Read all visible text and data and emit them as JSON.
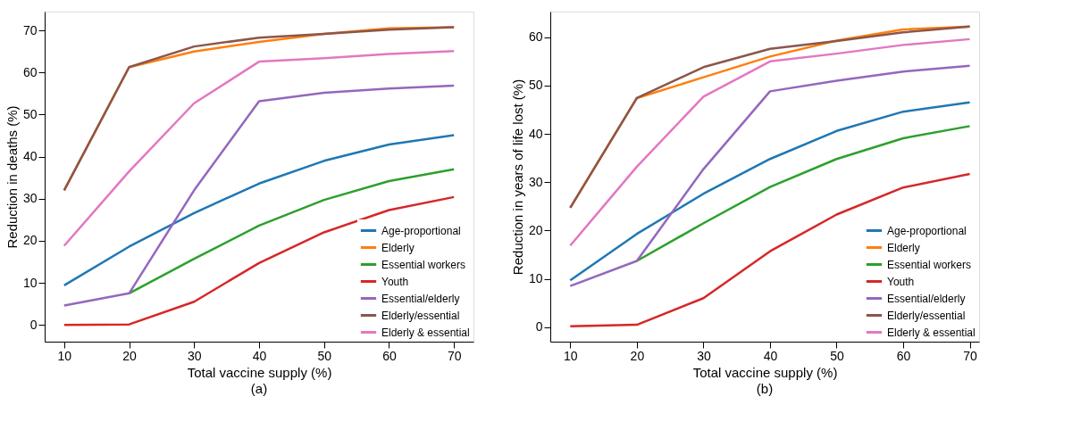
{
  "chart_data": [
    {
      "type": "line",
      "title": "(a)",
      "xlabel": "Total vaccine supply (%)",
      "ylabel": "Reduction in deaths (%)",
      "x": [
        10,
        20,
        30,
        40,
        50,
        60,
        70
      ],
      "xlim": [
        7,
        73
      ],
      "ylim": [
        -4,
        74.5
      ],
      "xticks": [
        10,
        20,
        30,
        40,
        50,
        60,
        70
      ],
      "yticks": [
        0,
        10,
        20,
        30,
        40,
        50,
        60,
        70
      ],
      "grid": false,
      "legend": "bottom right",
      "marker": "none",
      "line_style": "solid",
      "series": [
        {
          "name": "Age-proportional",
          "color": "#1f77b4",
          "values": [
            9.4,
            18.6,
            26.6,
            33.6,
            39,
            42.9,
            45.1
          ]
        },
        {
          "name": "Elderly",
          "color": "#ff7f0e",
          "values": [
            32,
            61.3,
            65,
            67.3,
            69.2,
            70.5,
            70.8
          ]
        },
        {
          "name": "Essential workers",
          "color": "#2ca02c",
          "values": [
            null,
            7.5,
            15.7,
            23.6,
            29.7,
            34.2,
            37
          ]
        },
        {
          "name": "Youth",
          "color": "#d62728",
          "values": [
            0,
            0.1,
            5.5,
            14.7,
            22,
            27.3,
            30.4
          ]
        },
        {
          "name": "Essential/elderly",
          "color": "#9467bd",
          "values": [
            4.6,
            7.5,
            32,
            53.2,
            55.2,
            56.2,
            56.9
          ]
        },
        {
          "name": "Elderly/essential",
          "color": "#8c564b",
          "values": [
            32,
            61.3,
            66.2,
            68.3,
            69.2,
            70.2,
            70.8
          ]
        },
        {
          "name": "Elderly & essential",
          "color": "#e377c2",
          "values": [
            18.8,
            36.5,
            52.7,
            62.6,
            63.4,
            64.4,
            65.1
          ]
        }
      ]
    },
    {
      "type": "line",
      "title": "(b)",
      "xlabel": "Total vaccine supply (%)",
      "ylabel": "Reduction in years of life lost (%)",
      "x": [
        10,
        20,
        30,
        40,
        50,
        60,
        70
      ],
      "xlim": [
        7,
        71.4
      ],
      "ylim": [
        -3,
        65.3
      ],
      "xticks": [
        10,
        20,
        30,
        40,
        50,
        60,
        70
      ],
      "yticks": [
        0,
        10,
        20,
        30,
        40,
        50,
        60
      ],
      "grid": false,
      "legend": "bottom right",
      "marker": "none",
      "line_style": "solid",
      "series": [
        {
          "name": "Age-proportional",
          "color": "#1f77b4",
          "values": [
            9.7,
            19.3,
            27.6,
            34.8,
            40.6,
            44.6,
            46.5
          ]
        },
        {
          "name": "Elderly",
          "color": "#ff7f0e",
          "values": [
            24.7,
            47.4,
            51.7,
            56,
            59.3,
            61.6,
            62.2
          ]
        },
        {
          "name": "Essential workers",
          "color": "#2ca02c",
          "values": [
            null,
            13.7,
            21.5,
            29,
            34.8,
            39.1,
            41.6
          ]
        },
        {
          "name": "Youth",
          "color": "#d62728",
          "values": [
            0.2,
            0.5,
            6,
            15.7,
            23.3,
            28.9,
            31.7
          ]
        },
        {
          "name": "Essential/elderly",
          "color": "#9467bd",
          "values": [
            8.5,
            13.7,
            32.7,
            48.8,
            51,
            52.9,
            54.1
          ]
        },
        {
          "name": "Elderly/essential",
          "color": "#8c564b",
          "values": [
            24.7,
            47.4,
            53.8,
            57.6,
            59.2,
            61,
            62.2
          ]
        },
        {
          "name": "Elderly & essential",
          "color": "#e377c2",
          "values": [
            16.9,
            33.2,
            47.7,
            55,
            56.6,
            58.4,
            59.6
          ]
        }
      ]
    }
  ]
}
